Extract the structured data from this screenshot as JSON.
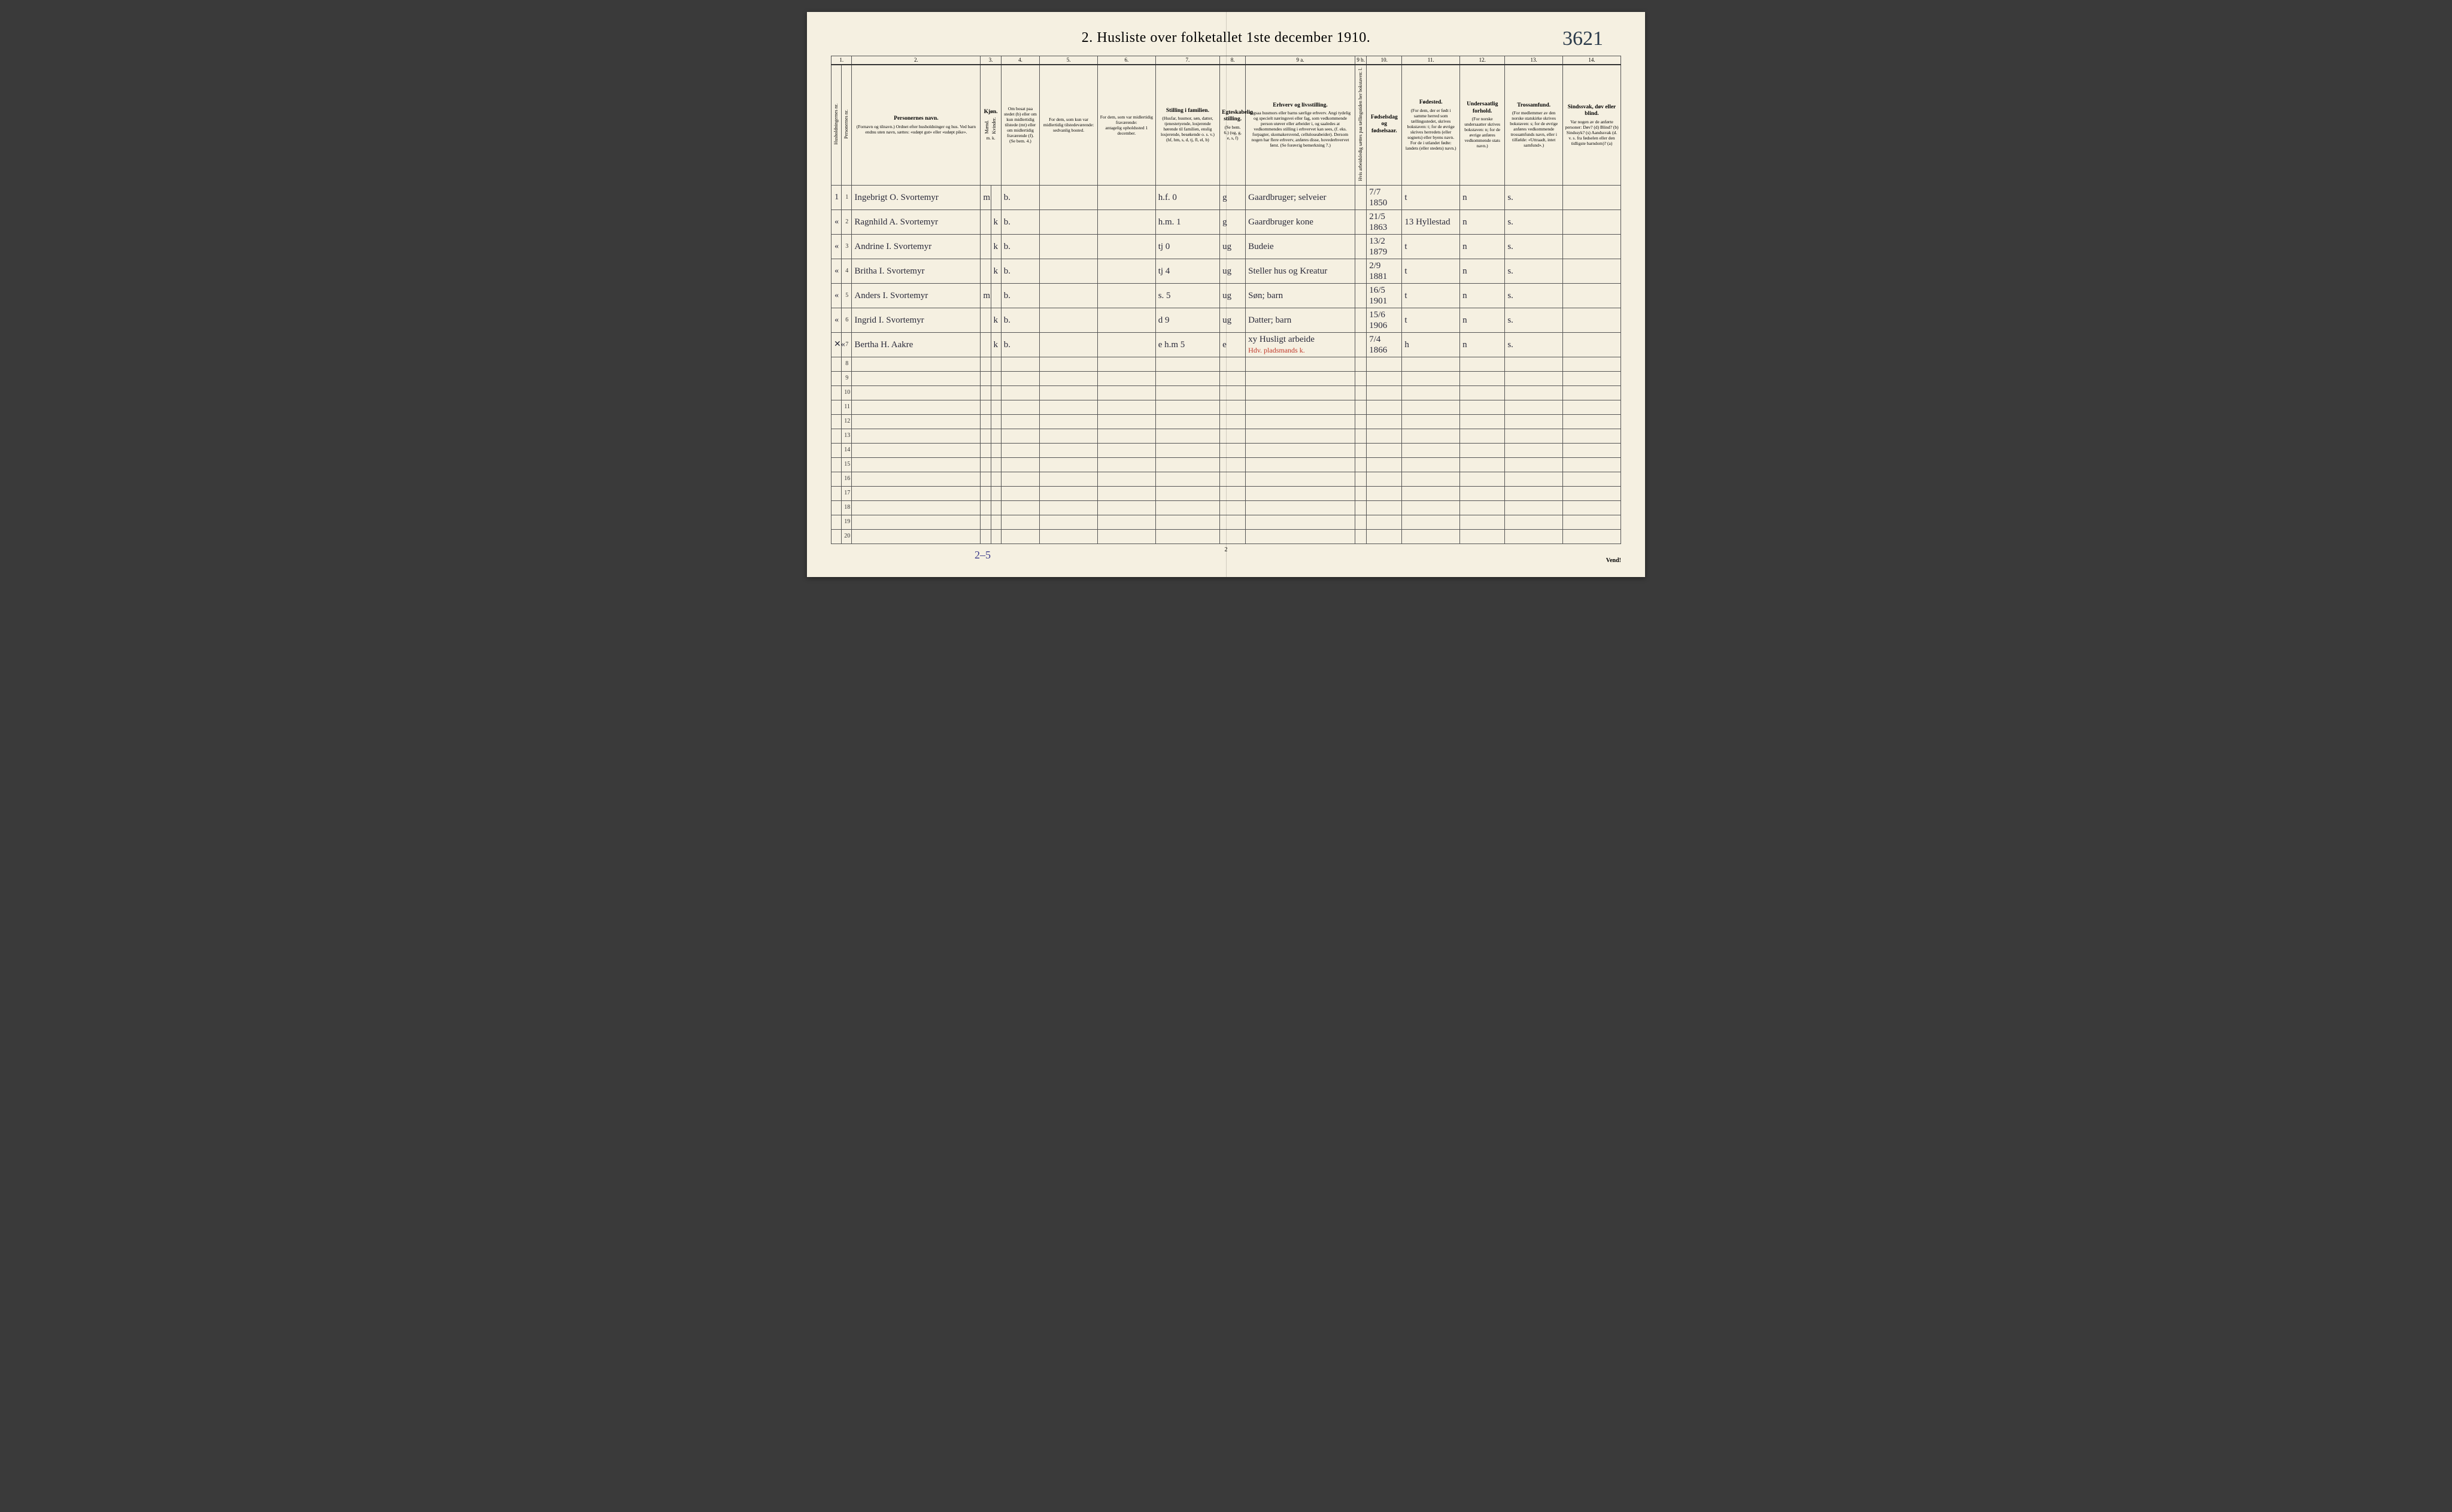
{
  "title": "2.  Husliste over folketallet 1ste december 1910.",
  "top_right_annotation": "3621",
  "footer_page_number": "2",
  "bottom_left_annotation": "2–5",
  "bottom_right_text": "Vend!",
  "col_numbers": [
    "1.",
    "",
    "2.",
    "3.",
    "",
    "4.",
    "5.",
    "6.",
    "7.",
    "8.",
    "9 a.",
    "9 b.",
    "10.",
    "11.",
    "12.",
    "13.",
    "14."
  ],
  "headers": {
    "c1a": "Husholdningernes nr.",
    "c1b": "Personernes nr.",
    "c2_title": "Personernes navn.",
    "c2_sub": "(Fornavn og tilnavn.)\nOrdnet efter husholdninger og hus.\nVed barn endnu uten navn, sættes: «udøpt gut» eller «udøpt pike».",
    "c3_title": "Kjøn.",
    "c3_m": "Mænd.",
    "c3_k": "Kvinder.",
    "c3_mk": "m.  k.",
    "c4_title": "Om bosat paa stedet (b) eller om kun midlertidig tilstede (mt) eller om midlertidig fraværende (f).",
    "c4_sub": "(Se bem. 4.)",
    "c5_title": "For dem, som kun var midlertidig tilstedeværende:",
    "c5_sub": "sedvanlig bosted.",
    "c6_title": "For dem, som var midlertidig fraværende:",
    "c6_sub": "antagelig opholdssted 1 december.",
    "c7_title": "Stilling i familien.",
    "c7_sub": "(Husfar, husmor, søn, datter, tjenestetyende, losjerende hørende til familien, enslig losjerende, besøkende o. s. v.)\n(hf, hm, s, d, tj, fl, el, b)",
    "c8_title": "Egteskabelig stilling.",
    "c8_sub": "(Se bem. 6.)\n(ug, g, e, s, f)",
    "c9a_title": "Erhverv og livsstilling.",
    "c9a_sub": "Ogsaa husmors eller barns særlige erhverv. Angi tydelig og specielt næringsvei eller fag, som vedkommende person utøver eller arbeider i, og saaledes at vedkommendes stilling i erhvervet kan sees, (f. eks. forpagter, skomakersvend, celluloseabeider). Dersom nogen har flere erhverv, anføres disse, hovederhvervet først.\n(Se forøvrig bemerkning 7.)",
    "c9b_title": "Hvis arbeidsledig sættes paa tællingstiden her bokstaven: l.",
    "c10_title": "Fødselsdag og fødselsaar.",
    "c11_title": "Fødested.",
    "c11_sub": "(For dem, der er født i samme herred som tællingsstedet, skrives bokstaven: t; for de øvrige skrives herredets (eller sognets) eller byens navn. For de i utlandet fødte: landets (eller stedets) navn.)",
    "c12_title": "Undersaatlig forhold.",
    "c12_sub": "(For norske undersaatter skrives bokstaven: n; for de øvrige anføres vedkommende stats navn.)",
    "c13_title": "Trossamfund.",
    "c13_sub": "(For medlemmer av den norske statskirke skrives bokstaven: s; for de øvrige anføres vedkommende trossamfunds navn, eller i tilfælde: «Uttraadt, intet samfund».)",
    "c14_title": "Sindssvak, døv eller blind.",
    "c14_sub": "Var nogen av de anførte personer:\nDøv?        (d)\nBlind?       (b)\nSindssyk? (s)\nAandssvak (d. v. s. fra fødselen eller den tidligste barndom)?  (a)"
  },
  "rows": [
    {
      "hh": "1",
      "pn": "1",
      "name": "Ingebrigt O. Svortemyr",
      "m": "m",
      "k": "",
      "res": "b.",
      "c5": "",
      "c6": "",
      "fam": "h.f.",
      "mar": "g",
      "col8b": "0",
      "occ": "Gaardbruger; selveier",
      "c9b": "",
      "dob": "7/7 1850",
      "bp": "t",
      "nat": "n",
      "rel": "s.",
      "c14": ""
    },
    {
      "hh": "«",
      "pn": "2",
      "name": "Ragnhild A. Svortemyr",
      "m": "",
      "k": "k",
      "res": "b.",
      "c5": "",
      "c6": "",
      "fam": "h.m.",
      "mar": "g",
      "col8b": "1",
      "occ": "Gaardbruger kone",
      "c9b": "",
      "dob": "21/5 1863",
      "bp": "13 Hyllestad",
      "nat": "n",
      "rel": "s.",
      "c14": ""
    },
    {
      "hh": "«",
      "pn": "3",
      "name": "Andrine I. Svortemyr",
      "m": "",
      "k": "k",
      "res": "b.",
      "c5": "",
      "c6": "",
      "fam": "tj",
      "mar": "ug",
      "col8b": "0",
      "occ": "Budeie",
      "c9b": "",
      "dob": "13/2 1879",
      "bp": "t",
      "nat": "n",
      "rel": "s.",
      "c14": ""
    },
    {
      "hh": "«",
      "pn": "4",
      "name": "Britha I. Svortemyr",
      "m": "",
      "k": "k",
      "res": "b.",
      "c5": "",
      "c6": "",
      "fam": "tj",
      "mar": "ug",
      "col8b": "4",
      "occ": "Steller hus og Kreatur",
      "c9b": "",
      "dob": "2/9 1881",
      "bp": "t",
      "nat": "n",
      "rel": "s.",
      "c14": ""
    },
    {
      "hh": "«",
      "pn": "5",
      "name": "Anders I. Svortemyr",
      "m": "m",
      "k": "",
      "res": "b.",
      "c5": "",
      "c6": "",
      "fam": "s.",
      "mar": "ug",
      "col8b": "5",
      "occ": "Søn;  barn",
      "c9b": "",
      "dob": "16/5 1901",
      "bp": "t",
      "nat": "n",
      "rel": "s.",
      "c14": ""
    },
    {
      "hh": "«",
      "pn": "6",
      "name": "Ingrid I. Svortemyr",
      "m": "",
      "k": "k",
      "res": "b.",
      "c5": "",
      "c6": "",
      "fam": "d",
      "mar": "ug",
      "col8b": "9",
      "occ": "Datter;  barn",
      "c9b": "",
      "dob": "15/6 1906",
      "bp": "t",
      "nat": "n",
      "rel": "s.",
      "c14": ""
    },
    {
      "hh": "✕«",
      "pn": "7",
      "name": "Bertha H. Aakre",
      "m": "",
      "k": "k",
      "res": "b.",
      "c5": "",
      "c6": "",
      "fam": "e  h.m 5",
      "mar": "e",
      "col8b": "",
      "occ": "xy Husligt arbeide",
      "occ_red": "Hdv. pladsmands k.",
      "c9b": "",
      "dob": "7/4 1866",
      "bp": "h",
      "nat": "n",
      "rel": "s.",
      "c14": ""
    }
  ],
  "blank_row_numbers": [
    "8",
    "9",
    "10",
    "11",
    "12",
    "13",
    "14",
    "15",
    "16",
    "17",
    "18",
    "19",
    "20"
  ]
}
